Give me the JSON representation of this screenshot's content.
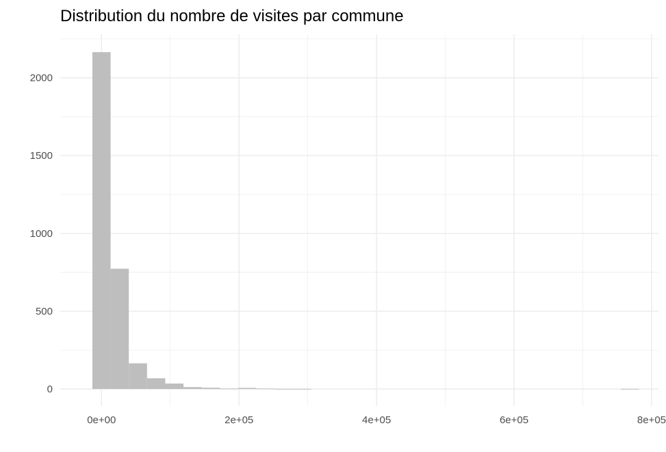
{
  "chart_data": {
    "type": "bar",
    "title": "Distribution du nombre de visites par commune",
    "xlabel": "",
    "ylabel": "",
    "xlim": [
      -60000,
      810000
    ],
    "ylim": [
      -110,
      2280
    ],
    "x_ticks": [
      {
        "value": 0,
        "label": "0e+00"
      },
      {
        "value": 200000,
        "label": "2e+05"
      },
      {
        "value": 400000,
        "label": "4e+05"
      },
      {
        "value": 600000,
        "label": "6e+05"
      },
      {
        "value": 800000,
        "label": "8e+05"
      }
    ],
    "y_ticks": [
      {
        "value": 0,
        "label": "0"
      },
      {
        "value": 500,
        "label": "500"
      },
      {
        "value": 1000,
        "label": "1000"
      },
      {
        "value": 1500,
        "label": "1500"
      },
      {
        "value": 2000,
        "label": "2000"
      }
    ],
    "bin_width": 26500,
    "bins": [
      {
        "x_start": -13250,
        "count": 2165
      },
      {
        "x_start": 13250,
        "count": 773
      },
      {
        "x_start": 39750,
        "count": 165
      },
      {
        "x_start": 66250,
        "count": 69
      },
      {
        "x_start": 92750,
        "count": 35
      },
      {
        "x_start": 119250,
        "count": 12
      },
      {
        "x_start": 145750,
        "count": 8
      },
      {
        "x_start": 172250,
        "count": 3
      },
      {
        "x_start": 198750,
        "count": 7
      },
      {
        "x_start": 225250,
        "count": 3
      },
      {
        "x_start": 251750,
        "count": 1
      },
      {
        "x_start": 278250,
        "count": 1
      },
      {
        "x_start": 304750,
        "count": 0
      },
      {
        "x_start": 331250,
        "count": 0
      },
      {
        "x_start": 357750,
        "count": 0
      },
      {
        "x_start": 384250,
        "count": 0
      },
      {
        "x_start": 410750,
        "count": 0
      },
      {
        "x_start": 437250,
        "count": 0
      },
      {
        "x_start": 463750,
        "count": 0
      },
      {
        "x_start": 490250,
        "count": 0
      },
      {
        "x_start": 516750,
        "count": 0
      },
      {
        "x_start": 543250,
        "count": 0
      },
      {
        "x_start": 569750,
        "count": 0
      },
      {
        "x_start": 596250,
        "count": 0
      },
      {
        "x_start": 622750,
        "count": 0
      },
      {
        "x_start": 649250,
        "count": 0
      },
      {
        "x_start": 675750,
        "count": 0
      },
      {
        "x_start": 702250,
        "count": 0
      },
      {
        "x_start": 728750,
        "count": 0
      },
      {
        "x_start": 755250,
        "count": 1
      }
    ],
    "bar_color": "#bebebe",
    "grid": true,
    "grid_color": "#ebebeb",
    "legend": "none"
  }
}
